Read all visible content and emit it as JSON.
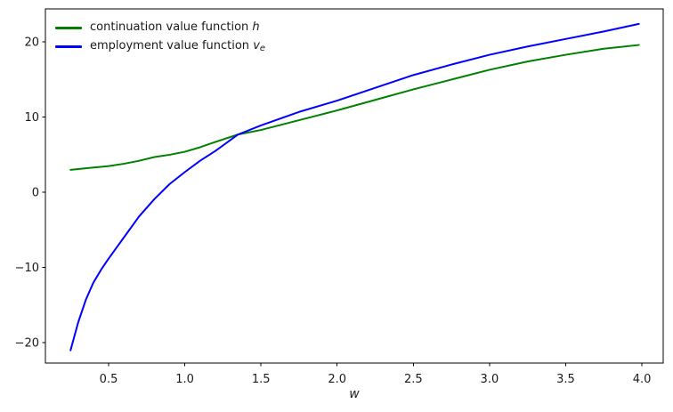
{
  "figure": {
    "background": "#ffffff",
    "spine_color": "#000000"
  },
  "legend": {
    "position": "upper-left",
    "frame": false,
    "items": [
      {
        "prefix": "continuation value function ",
        "symbol": "h",
        "subscript": "",
        "color": "#008000"
      },
      {
        "prefix": "employment value function ",
        "symbol": "v",
        "subscript": "e",
        "color": "#0000ff"
      }
    ]
  },
  "chart_data": {
    "type": "line",
    "title": "",
    "xlabel": "w",
    "ylabel": "",
    "grid": false,
    "legend_position": "upper left",
    "xlim": [
      0.085,
      4.14
    ],
    "ylim": [
      -22.7,
      24.4
    ],
    "xticks": [
      0.5,
      1.0,
      1.5,
      2.0,
      2.5,
      3.0,
      3.5,
      4.0
    ],
    "xtick_labels": [
      "0.5",
      "1.0",
      "1.5",
      "2.0",
      "2.5",
      "3.0",
      "3.5",
      "4.0"
    ],
    "yticks": [
      20,
      10,
      0,
      -10,
      -20
    ],
    "ytick_labels": [
      "20",
      "10",
      "0",
      "−10",
      "−20"
    ],
    "x": [
      0.25,
      0.3,
      0.35,
      0.4,
      0.45,
      0.5,
      0.6,
      0.7,
      0.8,
      0.9,
      1.0,
      1.1,
      1.2,
      1.35,
      1.5,
      1.75,
      2.0,
      2.25,
      2.5,
      2.75,
      3.0,
      3.25,
      3.5,
      3.75,
      3.98
    ],
    "series": [
      {
        "name": "continuation value function h",
        "color": "#008000",
        "linewidth": 2,
        "values": [
          3.0,
          3.1,
          3.2,
          3.3,
          3.4,
          3.5,
          3.8,
          4.2,
          4.7,
          5.0,
          5.4,
          6.0,
          6.7,
          7.7,
          8.3,
          9.6,
          10.9,
          12.3,
          13.7,
          15.0,
          16.3,
          17.4,
          18.3,
          19.1,
          19.6
        ]
      },
      {
        "name": "employment value function v_e",
        "color": "#0000ff",
        "linewidth": 2,
        "values": [
          -21.0,
          -17.3,
          -14.3,
          -12.0,
          -10.3,
          -8.8,
          -6.0,
          -3.2,
          -0.9,
          1.1,
          2.7,
          4.2,
          5.5,
          7.7,
          8.9,
          10.7,
          12.2,
          13.9,
          15.6,
          17.0,
          18.3,
          19.4,
          20.4,
          21.4,
          22.4
        ]
      }
    ],
    "annotations": {
      "intersection": {
        "w": 1.35,
        "value": 7.7
      }
    }
  }
}
